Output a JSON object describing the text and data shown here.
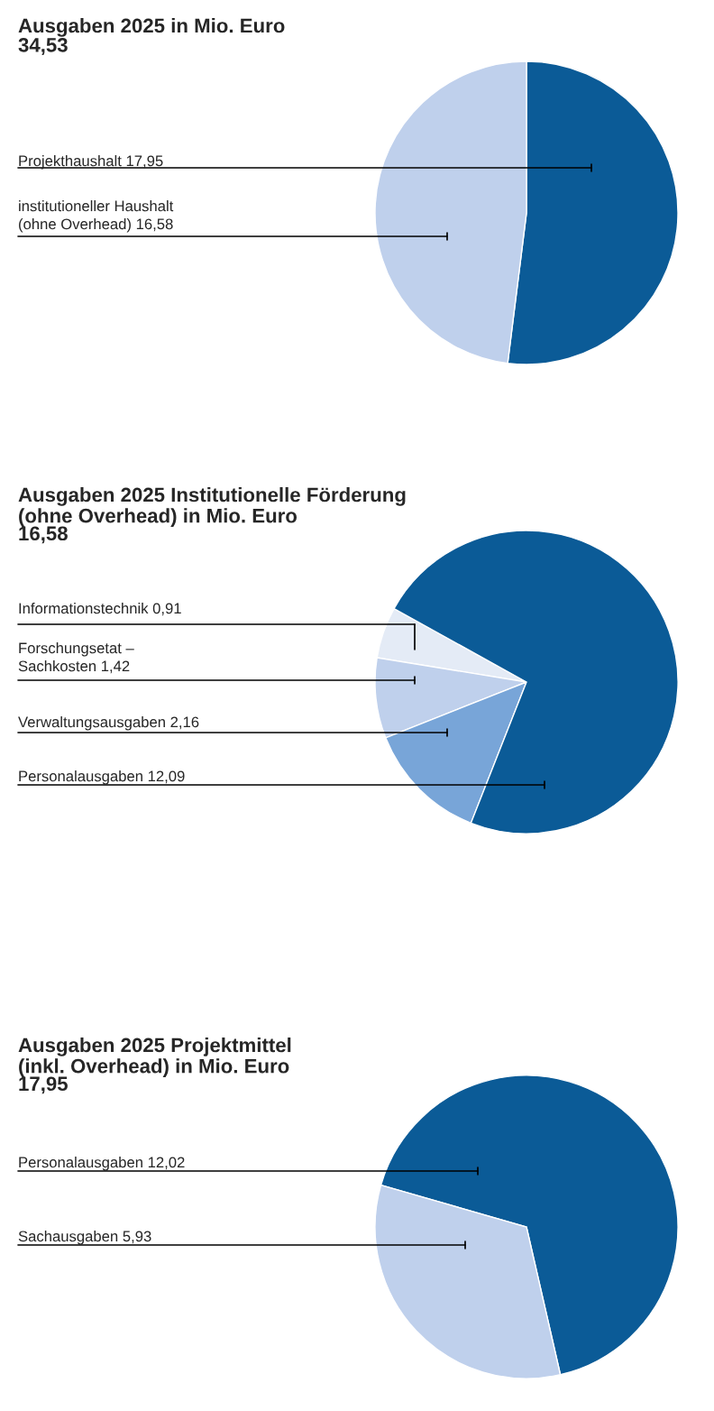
{
  "chart_data": [
    {
      "type": "pie",
      "title": "Ausgaben 2025 in Mio. Euro",
      "subtitle": "34,53",
      "categories": [
        "Projekthaushalt",
        "institutioneller Haushalt\n(ohne Overhead)"
      ],
      "values": [
        17.95,
        16.58
      ],
      "colors": [
        "#0b5b97",
        "#bfd0ec"
      ],
      "value_labels": [
        "17,95",
        "16,58"
      ]
    },
    {
      "type": "pie",
      "title": "Ausgaben 2025 Institutionelle Förderung\n(ohne Overhead) in Mio. Euro",
      "subtitle": "16,58",
      "categories": [
        "Informationstechnik",
        "Forschungsetat –\nSachkosten",
        "Verwaltungsausgaben",
        "Personalausgaben"
      ],
      "values": [
        0.91,
        1.42,
        2.16,
        12.09
      ],
      "colors": [
        "#e4ebf6",
        "#bfd0ec",
        "#78a5d8",
        "#0b5b97"
      ],
      "value_labels": [
        "0,91",
        "1,42",
        "2,16",
        "12,09"
      ]
    },
    {
      "type": "pie",
      "title": "Ausgaben 2025 Projektmittel\n(inkl. Overhead) in Mio. Euro",
      "subtitle": "17,95",
      "categories": [
        "Personalausgaben",
        "Sachausgaben"
      ],
      "values": [
        12.02,
        5.93
      ],
      "colors": [
        "#0b5b97",
        "#bfd0ec"
      ],
      "value_labels": [
        "12,02",
        "5,93"
      ]
    }
  ]
}
